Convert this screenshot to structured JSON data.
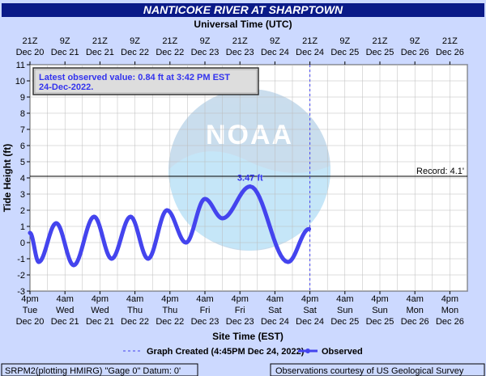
{
  "title": "NANTICOKE RIVER AT SHARPTOWN",
  "chart_data": {
    "type": "line",
    "top_axis_title": "Universal Time (UTC)",
    "bottom_axis_title": "Site Time (EST)",
    "ylabel": "Tide Height (ft)",
    "ylim": [
      -3,
      11
    ],
    "y_ticks": [
      -3,
      -2,
      -1,
      0,
      1,
      2,
      3,
      4,
      5,
      6,
      7,
      8,
      9,
      10,
      11
    ],
    "x_range_hours": [
      0,
      150
    ],
    "top_ticks": [
      {
        "h": 0,
        "l1": "21Z",
        "l2": "Dec 20"
      },
      {
        "h": 12,
        "l1": "9Z",
        "l2": "Dec 21"
      },
      {
        "h": 24,
        "l1": "21Z",
        "l2": "Dec 21"
      },
      {
        "h": 36,
        "l1": "9Z",
        "l2": "Dec 22"
      },
      {
        "h": 48,
        "l1": "21Z",
        "l2": "Dec 22"
      },
      {
        "h": 60,
        "l1": "9Z",
        "l2": "Dec 23"
      },
      {
        "h": 72,
        "l1": "21Z",
        "l2": "Dec 23"
      },
      {
        "h": 84,
        "l1": "9Z",
        "l2": "Dec 24"
      },
      {
        "h": 96,
        "l1": "21Z",
        "l2": "Dec 24"
      },
      {
        "h": 108,
        "l1": "9Z",
        "l2": "Dec 25"
      },
      {
        "h": 120,
        "l1": "21Z",
        "l2": "Dec 25"
      },
      {
        "h": 132,
        "l1": "9Z",
        "l2": "Dec 26"
      },
      {
        "h": 144,
        "l1": "21Z",
        "l2": "Dec 26"
      }
    ],
    "bottom_ticks": [
      {
        "h": 0,
        "l1": "4pm",
        "l2": "Tue",
        "l3": "Dec 20"
      },
      {
        "h": 12,
        "l1": "4am",
        "l2": "Wed",
        "l3": "Dec 21"
      },
      {
        "h": 24,
        "l1": "4pm",
        "l2": "Wed",
        "l3": "Dec 21"
      },
      {
        "h": 36,
        "l1": "4am",
        "l2": "Thu",
        "l3": "Dec 22"
      },
      {
        "h": 48,
        "l1": "4pm",
        "l2": "Thu",
        "l3": "Dec 22"
      },
      {
        "h": 60,
        "l1": "4am",
        "l2": "Fri",
        "l3": "Dec 23"
      },
      {
        "h": 72,
        "l1": "4pm",
        "l2": "Fri",
        "l3": "Dec 23"
      },
      {
        "h": 84,
        "l1": "4am",
        "l2": "Sat",
        "l3": "Dec 24"
      },
      {
        "h": 96,
        "l1": "4pm",
        "l2": "Sat",
        "l3": "Dec 24"
      },
      {
        "h": 108,
        "l1": "4am",
        "l2": "Sun",
        "l3": "Dec 25"
      },
      {
        "h": 120,
        "l1": "4pm",
        "l2": "Sun",
        "l3": "Dec 25"
      },
      {
        "h": 132,
        "l1": "4am",
        "l2": "Mon",
        "l3": "Dec 26"
      },
      {
        "h": 144,
        "l1": "4pm",
        "l2": "Mon",
        "l3": "Dec 26"
      }
    ],
    "record": {
      "value": 4.1,
      "label": "Record: 4.1'"
    },
    "graph_created_hour": 96,
    "peak_label": {
      "text": "3.47 ft",
      "h": 75.5,
      "y": 3.47
    },
    "latest_label": "Latest observed value: 0.84 ft at 3:42 PM EST 24-Dec-2022.",
    "series": [
      {
        "name": "Observed",
        "color": "#4444ee",
        "points": [
          [
            0,
            0.6
          ],
          [
            3,
            -1.2
          ],
          [
            9,
            1.2
          ],
          [
            15,
            -1.4
          ],
          [
            22,
            1.6
          ],
          [
            28,
            -1.0
          ],
          [
            34.5,
            1.6
          ],
          [
            40.5,
            -1.0
          ],
          [
            47,
            2.0
          ],
          [
            53.5,
            0.0
          ],
          [
            60,
            2.7
          ],
          [
            66,
            1.5
          ],
          [
            75.5,
            3.47
          ],
          [
            88.5,
            -1.2
          ],
          [
            95.7,
            0.84
          ]
        ]
      }
    ]
  },
  "legend": {
    "graph_created": "Graph Created (4:45PM Dec 24, 2022)",
    "observed": "Observed"
  },
  "footer": {
    "left": "SRPM2(plotting HMIRG) \"Gage 0\" Datum: 0'",
    "right": "Observations courtesy of US Geological Survey"
  }
}
